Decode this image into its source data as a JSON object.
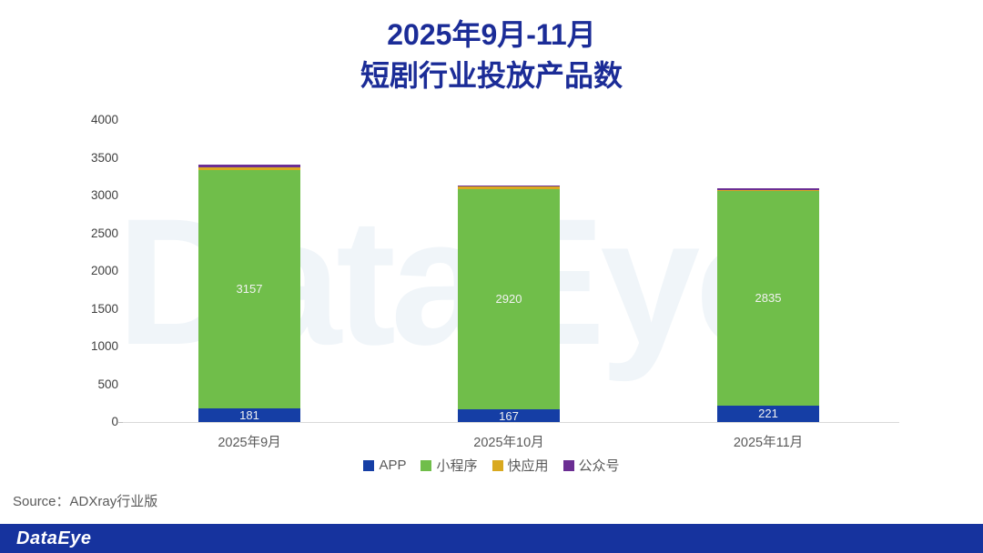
{
  "title": {
    "line1": "2025年9月-11月",
    "line2": "短剧行业投放产品数"
  },
  "watermark": "DataEye",
  "source": "Source：ADXray行业版",
  "footer": {
    "logo": "DataEye"
  },
  "colors": {
    "title_text": "#1b2c97",
    "axis_text": "#404040",
    "muted_text": "#595959",
    "axis_line": "#d9d9d9",
    "watermark": "#f0f5f9",
    "footer_bar": "#16339e",
    "app_blue": "#153ea5",
    "miniprogram_green": "#70be4a",
    "quickapp_gold": "#d9a920",
    "gongzhonghao_purple": "#6b2e93"
  },
  "chart_data": {
    "type": "bar",
    "stacked": true,
    "title": "2025年9月-11月 短剧行业投放产品数",
    "categories": [
      "2025年9月",
      "2025年10月",
      "2025年11月"
    ],
    "series": [
      {
        "name": "APP",
        "color": "#153ea5",
        "values": [
          181,
          167,
          221
        ],
        "labels_shown": true
      },
      {
        "name": "小程序",
        "color": "#70be4a",
        "values": [
          3157,
          2920,
          2835
        ],
        "labels_shown": true
      },
      {
        "name": "快应用",
        "color": "#d9a920",
        "values": [
          40,
          28,
          22
        ],
        "labels_shown": false,
        "values_estimated": true
      },
      {
        "name": "公众号",
        "color": "#6b2e93",
        "values": [
          35,
          14,
          14
        ],
        "labels_shown": false,
        "values_estimated": true
      }
    ],
    "ylim": [
      0,
      4000
    ],
    "yticks": [
      0,
      500,
      1000,
      1500,
      2000,
      2500,
      3000,
      3500,
      4000
    ],
    "grid": false,
    "legend_position": "bottom",
    "data_labels": "shown for APP and 小程序 segments only"
  }
}
